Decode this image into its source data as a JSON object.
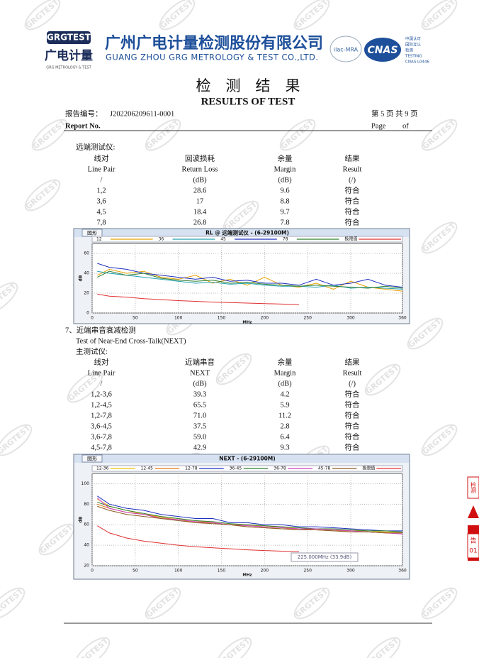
{
  "header": {
    "logo_mark": "GRGTEST",
    "logo_cn": "广电计量",
    "logo_sub": "GRG METROLOGY & TEST",
    "company_cn": "广州广电计量检测股份有限公司",
    "company_en": "GUANG ZHOU GRG METROLOGY & TEST CO.,LTD.",
    "ilac": "ilac-MRA",
    "cnas": "CNAS",
    "cnas_lines": [
      "中国认可",
      "国际互认",
      "检测",
      "TESTING",
      "CNAS L0446"
    ]
  },
  "title": {
    "cn": "检　测　结　果",
    "en": "RESULTS OF TEST"
  },
  "report": {
    "no_label": "报告编号：",
    "no": "J202206209611-0001",
    "no_label_en": "Report No.",
    "page_cn": "第 5 页 共 9 页",
    "page_en_a": "Page",
    "page_en_b": "of"
  },
  "sections": [
    {
      "heading": "远端测试仪:",
      "table": {
        "header": [
          [
            "线对",
            "回波损耗",
            "余量",
            "结果"
          ],
          [
            "Line Pair",
            "Return Loss",
            "Margin",
            "Result"
          ],
          [
            "/",
            "(dB)",
            "(dB)",
            "(/)"
          ]
        ],
        "rows": [
          [
            "1,2",
            "28.6",
            "9.6",
            "符合"
          ],
          [
            "3,6",
            "17",
            "8.8",
            "符合"
          ],
          [
            "4,5",
            "18.4",
            "9.7",
            "符合"
          ],
          [
            "7,8",
            "26.8",
            "7.8",
            "符合"
          ]
        ]
      }
    },
    {
      "heading": "7、近端串音衰减检测",
      "heading_en": "Test of Near-End Cross-Talk(NEXT)",
      "subheading": "主测试仪:",
      "table": {
        "header": [
          [
            "线对",
            "近端串音",
            "余量",
            "结果"
          ],
          [
            "Line Pair",
            "NEXT",
            "Margin",
            "Result"
          ],
          [
            "/",
            "(dB)",
            "(dB)",
            "(/)"
          ]
        ],
        "rows": [
          [
            "1,2-3,6",
            "39.3",
            "4.2",
            "符合"
          ],
          [
            "1,2-4,5",
            "65.5",
            "5.9",
            "符合"
          ],
          [
            "1,2-7,8",
            "71.0",
            "11.2",
            "符合"
          ],
          [
            "3,6-4,5",
            "37.5",
            "2.8",
            "符合"
          ],
          [
            "3,6-7,8",
            "59.0",
            "6.4",
            "符合"
          ],
          [
            "4,5-7,8",
            "42.9",
            "9.3",
            "符合"
          ]
        ]
      }
    }
  ],
  "charts": [
    {
      "type": "line",
      "menu": "图形",
      "title": "RL @ 远端测试仪 - (6-29100M)",
      "ylabel": "dB",
      "xlabel": "MHz",
      "xlim": [
        0,
        360
      ],
      "ylim": [
        0,
        70
      ],
      "xticks": [
        0,
        50,
        100,
        150,
        200,
        250,
        300,
        360
      ],
      "yticks": [
        0,
        20,
        40,
        60
      ],
      "grid": true,
      "x": [
        6,
        20,
        40,
        60,
        80,
        100,
        120,
        140,
        160,
        180,
        200,
        220,
        240,
        260,
        280,
        300,
        320,
        340,
        360
      ],
      "series": [
        {
          "name": "12",
          "color": "#e8a000",
          "values": [
            38,
            44,
            40,
            42,
            36,
            34,
            38,
            30,
            34,
            28,
            36,
            28,
            26,
            30,
            24,
            32,
            26,
            24,
            22
          ]
        },
        {
          "name": "36",
          "color": "#20a0b0",
          "values": [
            42,
            40,
            38,
            36,
            34,
            32,
            30,
            31,
            29,
            30,
            28,
            27,
            27,
            26,
            28,
            25,
            26,
            25,
            24
          ]
        },
        {
          "name": "45",
          "color": "#1f2fbf",
          "values": [
            50,
            46,
            44,
            40,
            38,
            36,
            34,
            36,
            32,
            33,
            30,
            30,
            28,
            34,
            28,
            30,
            34,
            28,
            26
          ]
        },
        {
          "name": "78",
          "color": "#2f7f2f",
          "values": [
            36,
            42,
            38,
            40,
            35,
            33,
            32,
            33,
            30,
            31,
            29,
            28,
            27,
            28,
            27,
            26,
            25,
            27,
            25
          ]
        },
        {
          "name": "极限值",
          "color": "#e03030",
          "values": [
            19,
            17,
            16,
            14.5,
            13.5,
            12.5,
            11.8,
            11,
            10.5,
            10,
            9.5,
            9,
            8.5,
            null,
            null,
            null,
            null,
            null,
            null
          ]
        }
      ]
    },
    {
      "type": "line",
      "menu": "图形",
      "title": "NEXT - (6-29100M)",
      "ylabel": "dB",
      "xlabel": "MHz",
      "tooltip": "225.000MHz (33.9dB)",
      "xlim": [
        0,
        360
      ],
      "ylim": [
        20,
        110
      ],
      "xticks": [
        0,
        50,
        100,
        150,
        200,
        250,
        300,
        360
      ],
      "yticks": [
        20,
        40,
        60,
        80,
        100
      ],
      "grid": true,
      "x": [
        6,
        20,
        40,
        60,
        80,
        100,
        120,
        140,
        160,
        180,
        200,
        220,
        240,
        260,
        280,
        300,
        320,
        340,
        360
      ],
      "series": [
        {
          "name": "12-36",
          "color": "#e8c000",
          "values": [
            85,
            78,
            74,
            70,
            68,
            66,
            64,
            62,
            60,
            60,
            58,
            58,
            56,
            56,
            55,
            54,
            54,
            53,
            52
          ]
        },
        {
          "name": "12-45",
          "color": "#e07a10",
          "values": [
            80,
            76,
            72,
            70,
            67,
            65,
            62,
            62,
            60,
            58,
            57,
            56,
            56,
            55,
            54,
            54,
            53,
            52,
            52
          ]
        },
        {
          "name": "12-78",
          "color": "#1f2fbf",
          "values": [
            88,
            80,
            76,
            74,
            70,
            68,
            66,
            66,
            62,
            62,
            60,
            60,
            58,
            58,
            57,
            56,
            55,
            54,
            54
          ]
        },
        {
          "name": "36-45",
          "color": "#2f7f2f",
          "values": [
            82,
            78,
            74,
            71,
            68,
            66,
            64,
            63,
            61,
            60,
            59,
            58,
            57,
            56,
            56,
            55,
            54,
            54,
            53
          ]
        },
        {
          "name": "36-78",
          "color": "#d040c0",
          "values": [
            86,
            76,
            72,
            70,
            66,
            65,
            63,
            62,
            60,
            59,
            58,
            57,
            56,
            56,
            55,
            54,
            53,
            52,
            51
          ]
        },
        {
          "name": "45-78",
          "color": "#8a5a20",
          "values": [
            78,
            74,
            70,
            68,
            66,
            64,
            62,
            61,
            60,
            58,
            57,
            56,
            55,
            55,
            54,
            53,
            53,
            52,
            52
          ]
        },
        {
          "name": "极限值",
          "color": "#e03030",
          "values": [
            59,
            52,
            47,
            44,
            42,
            40,
            38.5,
            37.5,
            36.5,
            35.5,
            34.8,
            34.2,
            33.6,
            null,
            null,
            null,
            null,
            null,
            null
          ]
        }
      ]
    }
  ],
  "side_tab": {
    "top": "检测",
    "bottom_a": "告",
    "bottom_b": "01"
  },
  "watermark": "GRGTEST"
}
